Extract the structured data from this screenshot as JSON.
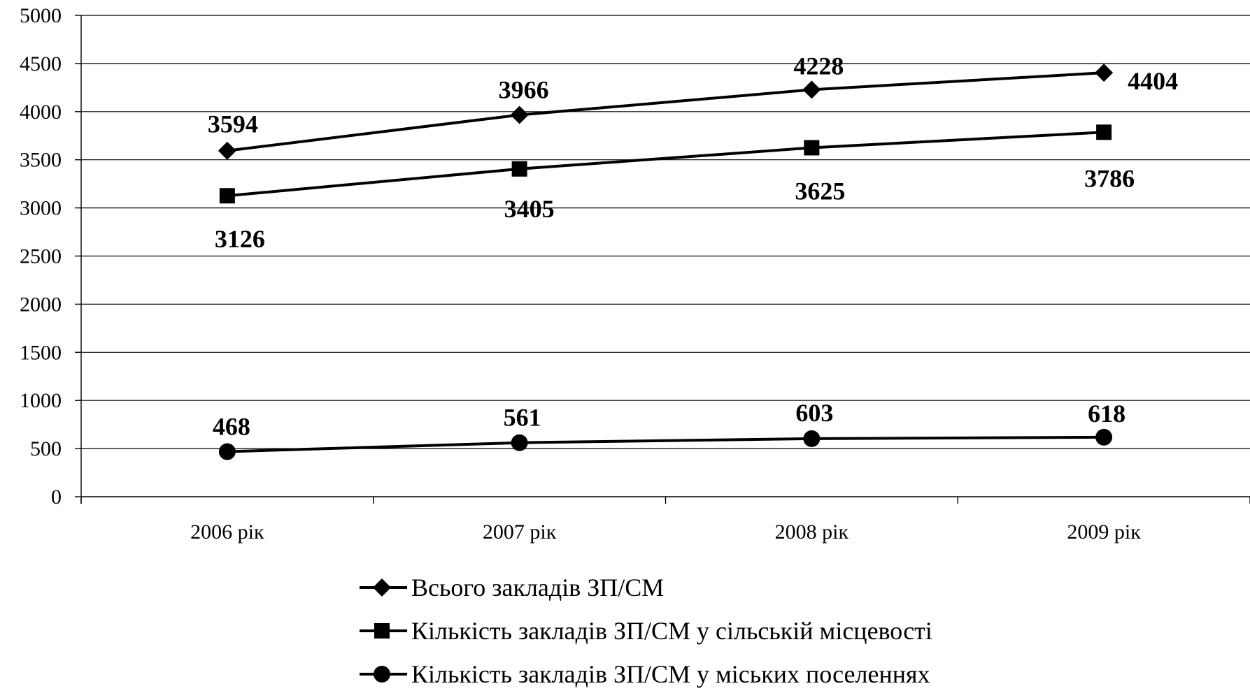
{
  "chart_data": {
    "type": "line",
    "categories": [
      "2006 рік",
      "2007 рік",
      "2008 рік",
      "2009 рік"
    ],
    "ylim": [
      0,
      5000
    ],
    "yticks": [
      0,
      500,
      1000,
      1500,
      2000,
      2500,
      3000,
      3500,
      4000,
      4500,
      5000
    ],
    "grid": true,
    "legend_position": "bottom",
    "series": [
      {
        "name": "Всього закладів ЗП/СМ",
        "marker": "diamond",
        "values": [
          3594,
          3966,
          4228,
          4404
        ],
        "color": "#000000"
      },
      {
        "name": "Кількість закладів ЗП/СМ у сільській місцевості",
        "marker": "square",
        "values": [
          3126,
          3405,
          3625,
          3786
        ],
        "color": "#000000"
      },
      {
        "name": "Кількість закладів ЗП/СМ у міських поселеннях",
        "marker": "circle",
        "values": [
          468,
          561,
          603,
          618
        ],
        "color": "#000000"
      }
    ]
  }
}
